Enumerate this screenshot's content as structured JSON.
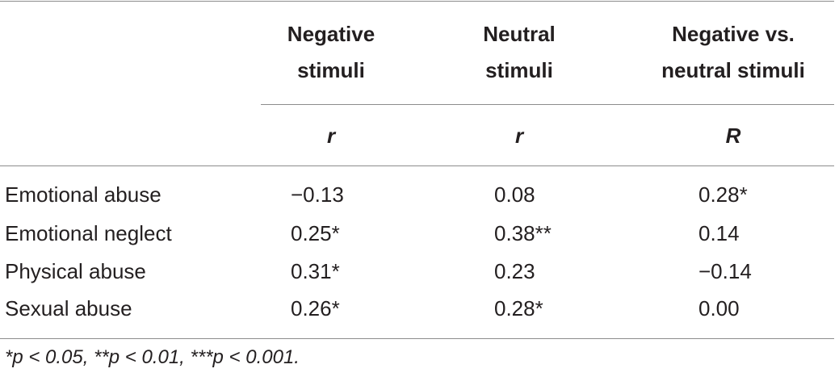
{
  "table": {
    "columns": [
      {
        "line1": "Negative",
        "line2": "stimuli",
        "stat": "r"
      },
      {
        "line1": "Neutral",
        "line2": "stimuli",
        "stat": "r"
      },
      {
        "line1": "Negative vs.",
        "line2": "neutral stimuli",
        "stat": "R"
      }
    ],
    "rows": [
      {
        "label": "Emotional abuse",
        "values": [
          "−0.13",
          "0.08",
          "0.28*"
        ]
      },
      {
        "label": "Emotional neglect",
        "values": [
          "0.25*",
          "0.38**",
          "0.14"
        ]
      },
      {
        "label": "Physical abuse",
        "values": [
          "0.31*",
          "0.23",
          "−0.14"
        ]
      },
      {
        "label": "Sexual abuse",
        "values": [
          "0.26*",
          "0.28*",
          "0.00"
        ]
      }
    ],
    "footnote": "*p < 0.05, **p < 0.01, ***p < 0.001."
  }
}
